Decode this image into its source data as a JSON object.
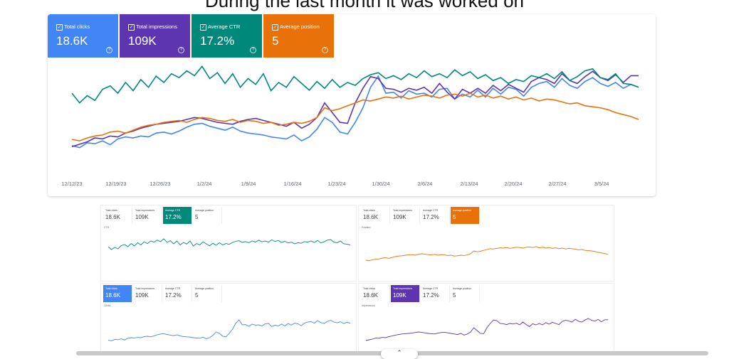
{
  "page": {
    "heading": "During the last month it was worked on"
  },
  "tiles": [
    {
      "label": "Total clicks",
      "value": "18.6K",
      "color": "#4285f4"
    },
    {
      "label": "Total impressions",
      "value": "109K",
      "color": "#5e35b1"
    },
    {
      "label": "Average CTR",
      "value": "17.2%",
      "color": "#00897b"
    },
    {
      "label": "Average position",
      "value": "5",
      "color": "#e8710a"
    }
  ],
  "icons": {
    "checkbox": "checkbox-icon",
    "help": "help-circle-icon",
    "scroll": "chevron-up-icon"
  },
  "chart_data": [
    {
      "type": "line",
      "x_ticks": [
        "12/12/23",
        "12/19/23",
        "12/26/23",
        "1/2/24",
        "1/9/24",
        "1/16/24",
        "1/23/24",
        "1/30/24",
        "2/6/24",
        "2/13/24",
        "2/20/24",
        "2/27/24",
        "3/5/24"
      ],
      "series": [
        {
          "name": "Total clicks",
          "color": "#4285f4",
          "values": [
            0.42,
            0.38,
            0.48,
            0.46,
            0.52,
            0.44,
            0.56,
            0.6,
            0.58,
            0.62,
            0.6,
            0.68,
            0.7,
            0.66,
            0.72,
            0.8,
            0.86,
            0.88,
            0.82,
            0.78,
            0.74,
            0.8,
            0.72,
            0.68,
            0.66,
            0.64,
            0.6,
            0.58,
            0.56,
            0.64,
            0.52,
            0.6,
            0.76,
            1.0,
            0.9,
            0.7,
            0.66,
            0.9,
            1.2,
            1.62,
            1.85,
            1.5,
            1.52,
            1.4,
            1.55,
            1.48,
            1.5,
            1.42,
            1.58,
            1.6,
            1.38,
            1.48,
            1.42,
            1.56,
            1.42,
            1.6,
            1.48,
            1.62,
            1.58,
            1.44,
            1.62,
            1.7,
            1.74,
            1.62,
            1.8,
            1.66,
            1.6,
            1.74,
            1.82,
            1.7,
            1.64,
            1.72,
            1.6,
            1.68,
            1.62
          ]
        },
        {
          "name": "Total impressions",
          "color": "#5e35b1",
          "values": [
            0.4,
            0.45,
            0.5,
            0.58,
            0.56,
            0.62,
            0.6,
            0.68,
            0.72,
            0.78,
            0.82,
            0.86,
            0.88,
            0.9,
            0.92,
            0.96,
            1.0,
            0.98,
            0.94,
            0.9,
            0.88,
            0.86,
            0.92,
            0.96,
            0.98,
            0.94,
            0.9,
            0.86,
            0.82,
            0.9,
            0.78,
            0.86,
            1.0,
            1.3,
            1.1,
            0.9,
            0.88,
            1.3,
            1.6,
            1.84,
            1.8,
            1.6,
            1.58,
            1.52,
            1.6,
            1.56,
            1.62,
            1.5,
            1.7,
            1.52,
            1.38,
            1.58,
            1.5,
            1.6,
            1.5,
            1.66,
            1.55,
            1.68,
            1.6,
            1.52,
            1.74,
            1.82,
            1.78,
            1.7,
            1.9,
            1.76,
            1.7,
            1.84,
            1.95,
            1.82,
            1.76,
            1.88,
            1.72,
            1.86,
            1.86
          ]
        },
        {
          "name": "Average CTR",
          "color": "#00897b",
          "values": [
            1.5,
            1.3,
            1.45,
            1.35,
            1.58,
            1.65,
            1.5,
            1.72,
            1.55,
            1.78,
            1.62,
            1.85,
            1.72,
            1.9,
            1.82,
            1.96,
            1.86,
            2.05,
            1.8,
            1.92,
            1.7,
            1.9,
            1.62,
            1.8,
            1.68,
            1.9,
            1.55,
            1.72,
            1.62,
            1.84,
            1.7,
            1.56,
            1.74,
            1.6,
            1.78,
            1.62,
            1.72,
            1.66,
            1.8,
            1.88,
            1.92,
            1.8,
            1.86,
            1.78,
            1.9,
            1.82,
            1.96,
            1.84,
            1.9,
            1.82,
            1.98,
            1.86,
            1.94,
            1.8,
            1.88,
            1.76,
            1.82,
            1.7,
            1.78,
            1.74,
            1.86,
            1.82,
            1.9,
            1.8,
            1.94,
            1.76,
            1.84,
            1.96,
            2.0,
            1.82,
            1.78,
            1.9,
            1.7,
            1.68,
            1.62
          ]
        },
        {
          "name": "Average position",
          "color": "#e8710a",
          "values": [
            0.55,
            0.52,
            0.58,
            0.62,
            0.64,
            0.7,
            0.72,
            0.68,
            0.74,
            0.8,
            0.84,
            0.86,
            0.9,
            0.92,
            0.94,
            0.9,
            0.96,
            1.0,
            0.98,
            0.94,
            0.92,
            0.96,
            0.9,
            0.94,
            0.92,
            0.88,
            0.9,
            0.84,
            0.86,
            0.9,
            0.88,
            0.92,
            1.0,
            1.2,
            1.14,
            1.18,
            1.24,
            1.3,
            1.36,
            1.34,
            1.38,
            1.42,
            1.4,
            1.44,
            1.38,
            1.42,
            1.46,
            1.44,
            1.4,
            1.46,
            1.48,
            1.44,
            1.5,
            1.42,
            1.46,
            1.4,
            1.44,
            1.38,
            1.42,
            1.36,
            1.4,
            1.34,
            1.38,
            1.36,
            1.32,
            1.28,
            1.3,
            1.24,
            1.22,
            1.2,
            1.16,
            1.1,
            1.06,
            1.02,
            0.96
          ]
        }
      ]
    }
  ],
  "mini_reports": [
    {
      "active": 2,
      "tiles": [
        "Total clicks",
        "Total impressions",
        "Average CTR",
        "Average position"
      ],
      "values": [
        "18.6K",
        "109K",
        "17.2%",
        "5"
      ],
      "metric_label": "CTR",
      "color": "#00897b"
    },
    {
      "active": 3,
      "tiles": [
        "Total clicks",
        "Total impressions",
        "Average CTR",
        "Average position"
      ],
      "values": [
        "18.6K",
        "109K",
        "17.2%",
        "5"
      ],
      "metric_label": "Position",
      "color": "#e8710a"
    },
    {
      "active": 0,
      "tiles": [
        "Total clicks",
        "Total impressions",
        "Average CTR",
        "Average position"
      ],
      "values": [
        "18.6K",
        "109K",
        "17.2%",
        "5"
      ],
      "metric_label": "Clicks",
      "color": "#4285f4"
    },
    {
      "active": 1,
      "tiles": [
        "Total clicks",
        "Total impressions",
        "Average CTR",
        "Average position"
      ],
      "values": [
        "18.6K",
        "109K",
        "17.2%",
        "5"
      ],
      "metric_label": "Impressions",
      "color": "#5e35b1"
    }
  ]
}
